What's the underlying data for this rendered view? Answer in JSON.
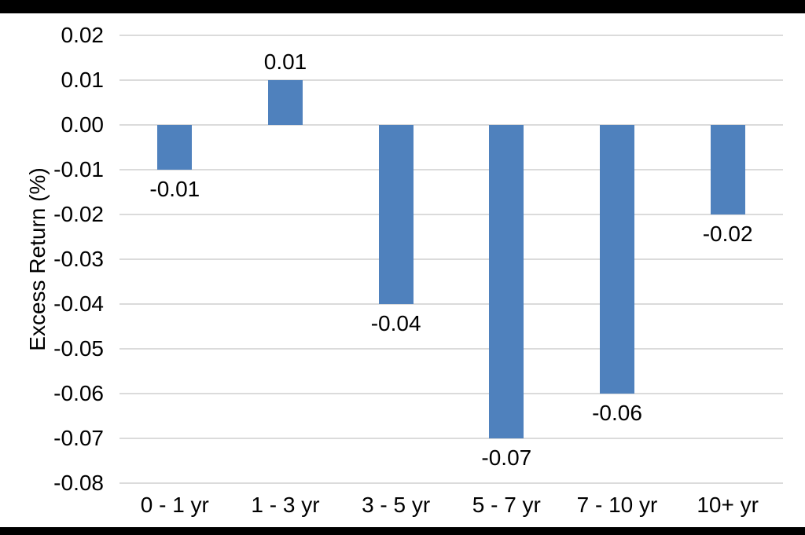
{
  "page": {
    "background_color": "#ffffff",
    "frame_border_color": "#000000"
  },
  "chart_data": {
    "type": "bar",
    "title": "",
    "xlabel": "",
    "ylabel": "Excess Return (%)",
    "categories": [
      "0 - 1 yr",
      "1 - 3 yr",
      "3 - 5 yr",
      "5 - 7 yr",
      "7 - 10 yr",
      "10+ yr"
    ],
    "values": [
      -0.01,
      0.01,
      -0.04,
      -0.07,
      -0.06,
      -0.02
    ],
    "data_labels": [
      "-0.01",
      "0.01",
      "-0.04",
      "-0.07",
      "-0.06",
      "-0.02"
    ],
    "ylim": [
      -0.08,
      0.02
    ],
    "ytick_step": 0.01,
    "yticks": [
      "0.02",
      "0.01",
      "0.00",
      "-0.01",
      "-0.02",
      "-0.03",
      "-0.04",
      "-0.05",
      "-0.06",
      "-0.07",
      "-0.08"
    ],
    "grid": true,
    "legend_position": "none",
    "bar_color": "#4F81BD",
    "gridline_color": "#DBDBDB",
    "text_color": "#000000"
  }
}
